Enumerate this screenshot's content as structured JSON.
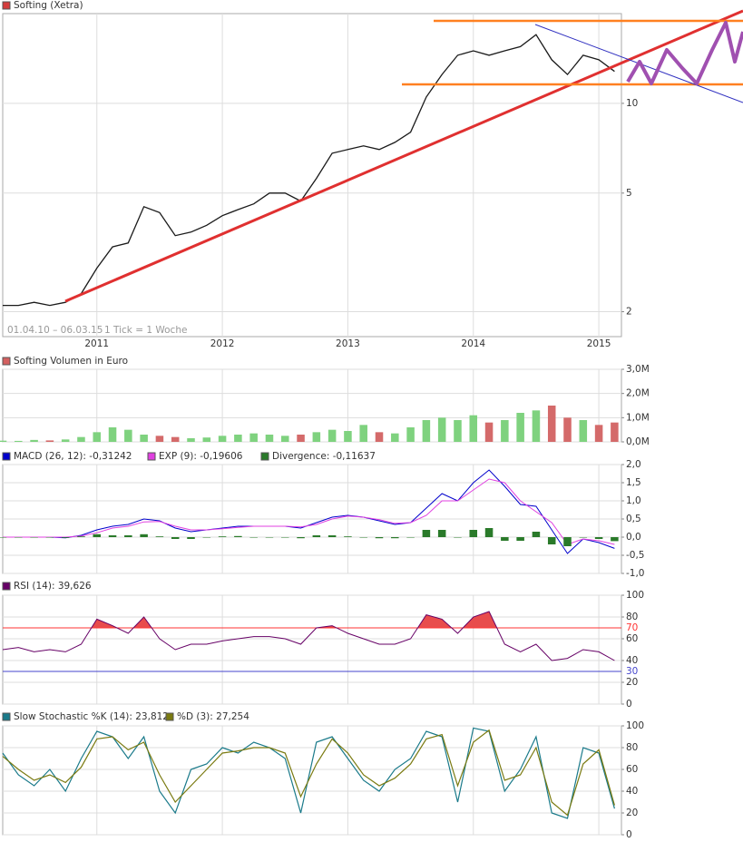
{
  "chart_data": [
    {
      "type": "line",
      "title": "Softing (Xetra)",
      "title_color": "#d43c3c",
      "date_range": "01.04.10 – 06.03.15",
      "tick_note": "1 Tick = 1 Woche",
      "x": [
        2010.25,
        2010.375,
        2010.5,
        2010.625,
        2010.75,
        2010.875,
        2011,
        2011.125,
        2011.25,
        2011.375,
        2011.5,
        2011.625,
        2011.75,
        2011.875,
        2012,
        2012.125,
        2012.25,
        2012.375,
        2012.5,
        2012.625,
        2012.75,
        2012.875,
        2013,
        2013.125,
        2013.25,
        2013.375,
        2013.5,
        2013.625,
        2013.75,
        2013.875,
        2014,
        2014.125,
        2014.25,
        2014.375,
        2014.5,
        2014.625,
        2014.75,
        2014.875,
        2015,
        2015.125
      ],
      "values": [
        2.1,
        2.1,
        2.15,
        2.1,
        2.15,
        2.3,
        2.8,
        3.3,
        3.4,
        4.5,
        4.3,
        3.6,
        3.7,
        3.9,
        4.2,
        4.4,
        4.6,
        5.0,
        5.0,
        4.7,
        5.6,
        6.8,
        7.0,
        7.2,
        7.0,
        7.4,
        8.0,
        10.5,
        12.5,
        14.5,
        15.0,
        14.5,
        15.0,
        15.5,
        17.0,
        14.0,
        12.5,
        14.5,
        14.0,
        12.8
      ],
      "color": "#1a1a1a",
      "xlim": [
        2010.25,
        2015.18
      ],
      "xticks": [
        2011,
        2012,
        2013,
        2014,
        2015
      ],
      "log_scale": true,
      "ylim": [
        1.65,
        20
      ],
      "yticks": [
        2,
        5,
        10
      ],
      "grid": true
    },
    {
      "type": "bar",
      "title": "Softing Volumen in Euro",
      "title_color": "#d46060",
      "x": [
        2010.25,
        2010.375,
        2010.5,
        2010.625,
        2010.75,
        2010.875,
        2011,
        2011.125,
        2011.25,
        2011.375,
        2011.5,
        2011.625,
        2011.75,
        2011.875,
        2012,
        2012.125,
        2012.25,
        2012.375,
        2012.5,
        2012.625,
        2012.75,
        2012.875,
        2013,
        2013.125,
        2013.25,
        2013.375,
        2013.5,
        2013.625,
        2013.75,
        2013.875,
        2014,
        2014.125,
        2014.25,
        2014.375,
        2014.5,
        2014.625,
        2014.75,
        2014.875,
        2015,
        2015.125
      ],
      "values": [
        50000,
        40000,
        80000,
        60000,
        100000,
        200000,
        400000,
        600000,
        500000,
        300000,
        250000,
        200000,
        150000,
        180000,
        250000,
        300000,
        350000,
        300000,
        250000,
        300000,
        400000,
        500000,
        450000,
        700000,
        400000,
        350000,
        600000,
        900000,
        1000000,
        900000,
        1100000,
        800000,
        900000,
        1200000,
        1300000,
        1500000,
        1000000,
        900000,
        700000,
        800000
      ],
      "up_color": "#7fd27f",
      "down_color": "#d46a6a",
      "xlim": [
        2010.25,
        2015.18
      ],
      "ylim": [
        0,
        3000000
      ],
      "yticks": [
        {
          "value": 0,
          "label": "0,0M"
        },
        {
          "value": 1000000,
          "label": "1,0M"
        },
        {
          "value": 2000000,
          "label": "2,0M"
        },
        {
          "value": 3000000,
          "label": "3,0M"
        }
      ],
      "grid": true
    },
    {
      "type": "macd",
      "x": [
        2010.25,
        2010.375,
        2010.5,
        2010.625,
        2010.75,
        2010.875,
        2011,
        2011.125,
        2011.25,
        2011.375,
        2011.5,
        2011.625,
        2011.75,
        2011.875,
        2012,
        2012.125,
        2012.25,
        2012.375,
        2012.5,
        2012.625,
        2012.75,
        2012.875,
        2013,
        2013.125,
        2013.25,
        2013.375,
        2013.5,
        2013.625,
        2013.75,
        2013.875,
        2014,
        2014.125,
        2014.25,
        2014.375,
        2014.5,
        2014.625,
        2014.75,
        2014.875,
        2015,
        2015.125
      ],
      "series": [
        {
          "name": "MACD (26, 12): -0,31242",
          "color": "#0000cc",
          "kind": "line",
          "values": [
            0,
            0,
            0,
            0,
            -0.02,
            0.05,
            0.2,
            0.3,
            0.35,
            0.5,
            0.45,
            0.25,
            0.15,
            0.2,
            0.25,
            0.3,
            0.3,
            0.3,
            0.3,
            0.25,
            0.4,
            0.55,
            0.6,
            0.55,
            0.45,
            0.35,
            0.4,
            0.8,
            1.2,
            1.0,
            1.5,
            1.85,
            1.4,
            0.9,
            0.85,
            0.2,
            -0.45,
            -0.05,
            -0.15,
            -0.31
          ]
        },
        {
          "name": "EXP (9): -0,19606",
          "color": "#e040e0",
          "kind": "line",
          "values": [
            0,
            0,
            0,
            0,
            0,
            0.03,
            0.12,
            0.25,
            0.3,
            0.42,
            0.43,
            0.3,
            0.2,
            0.2,
            0.23,
            0.27,
            0.3,
            0.3,
            0.3,
            0.28,
            0.35,
            0.5,
            0.58,
            0.55,
            0.48,
            0.38,
            0.4,
            0.6,
            1.0,
            1.0,
            1.3,
            1.6,
            1.5,
            1.0,
            0.7,
            0.4,
            -0.2,
            -0.05,
            -0.1,
            -0.2
          ]
        },
        {
          "name": "Divergence: -0,11637",
          "color": "#2a7a2a",
          "kind": "bar",
          "values": [
            0,
            0,
            0,
            0,
            -0.02,
            0.02,
            0.08,
            0.05,
            0.05,
            0.08,
            0.02,
            -0.05,
            -0.05,
            0,
            0.02,
            0.03,
            0,
            0,
            0,
            -0.03,
            0.05,
            0.05,
            0.02,
            0,
            -0.03,
            -0.03,
            0,
            0.2,
            0.2,
            0,
            0.2,
            0.25,
            -0.1,
            -0.1,
            0.15,
            -0.2,
            -0.25,
            0,
            -0.05,
            -0.11
          ]
        }
      ],
      "legend_x": [
        3,
        163,
        288
      ],
      "xlim": [
        2010.25,
        2015.18
      ],
      "ylim": [
        -1,
        2
      ],
      "yticks": [
        {
          "value": -1,
          "label": "-1,0"
        },
        {
          "value": -0.5,
          "label": "-0,5"
        },
        {
          "value": 0,
          "label": "0,0"
        },
        {
          "value": 0.5,
          "label": "0,5"
        },
        {
          "value": 1,
          "label": "1,0"
        },
        {
          "value": 1.5,
          "label": "1,5"
        },
        {
          "value": 2,
          "label": "2,0"
        }
      ],
      "grid": true
    },
    {
      "type": "rsi",
      "title": "RSI (14): 39,626",
      "title_color": "#660066",
      "x": [
        2010.25,
        2010.375,
        2010.5,
        2010.625,
        2010.75,
        2010.875,
        2011,
        2011.125,
        2011.25,
        2011.375,
        2011.5,
        2011.625,
        2011.75,
        2011.875,
        2012,
        2012.125,
        2012.25,
        2012.375,
        2012.5,
        2012.625,
        2012.75,
        2012.875,
        2013,
        2013.125,
        2013.25,
        2013.375,
        2013.5,
        2013.625,
        2013.75,
        2013.875,
        2014,
        2014.125,
        2014.25,
        2014.375,
        2014.5,
        2014.625,
        2014.75,
        2014.875,
        2015,
        2015.125
      ],
      "values": [
        50,
        52,
        48,
        50,
        48,
        55,
        78,
        72,
        65,
        80,
        60,
        50,
        55,
        55,
        58,
        60,
        62,
        62,
        60,
        55,
        70,
        72,
        65,
        60,
        55,
        55,
        60,
        82,
        78,
        65,
        80,
        85,
        55,
        48,
        55,
        40,
        42,
        50,
        48,
        40
      ],
      "color": "#660066",
      "fill_color": "#e84c4c",
      "levels": [
        {
          "value": 70,
          "color": "#ff3333"
        },
        {
          "value": 30,
          "color": "#4444cc"
        }
      ],
      "xlim": [
        2010.25,
        2015.18
      ],
      "ylim": [
        0,
        100
      ],
      "yticks": [
        0,
        20,
        40,
        60,
        80,
        100
      ],
      "grid": true
    },
    {
      "type": "stochastic",
      "x": [
        2010.25,
        2010.375,
        2010.5,
        2010.625,
        2010.75,
        2010.875,
        2011,
        2011.125,
        2011.25,
        2011.375,
        2011.5,
        2011.625,
        2011.75,
        2011.875,
        2012,
        2012.125,
        2012.25,
        2012.375,
        2012.5,
        2012.625,
        2012.75,
        2012.875,
        2013,
        2013.125,
        2013.25,
        2013.375,
        2013.5,
        2013.625,
        2013.75,
        2013.875,
        2014,
        2014.125,
        2014.25,
        2014.375,
        2014.5,
        2014.625,
        2014.75,
        2014.875,
        2015,
        2015.125
      ],
      "series": [
        {
          "name": "Slow Stochastic %K (14): 23,812",
          "color": "#1a7a8a",
          "kind": "line",
          "values": [
            75,
            55,
            45,
            60,
            40,
            70,
            95,
            90,
            70,
            90,
            40,
            20,
            60,
            65,
            80,
            75,
            85,
            80,
            70,
            20,
            85,
            90,
            70,
            50,
            40,
            60,
            70,
            95,
            90,
            30,
            98,
            95,
            40,
            60,
            90,
            20,
            15,
            80,
            75,
            24
          ]
        },
        {
          "name": "%D (3): 27,254",
          "color": "#7a7a10",
          "kind": "line",
          "values": [
            72,
            60,
            50,
            55,
            48,
            62,
            88,
            90,
            78,
            85,
            55,
            30,
            45,
            60,
            75,
            77,
            80,
            80,
            75,
            35,
            65,
            88,
            75,
            55,
            45,
            52,
            65,
            88,
            92,
            45,
            85,
            96,
            50,
            55,
            80,
            30,
            18,
            65,
            78,
            27
          ]
        }
      ],
      "legend_x": [
        3,
        183
      ],
      "xlim": [
        2010.25,
        2015.18
      ],
      "ylim": [
        0,
        100
      ],
      "yticks": [
        0,
        20,
        40,
        60,
        80,
        100
      ],
      "grid": true
    }
  ]
}
